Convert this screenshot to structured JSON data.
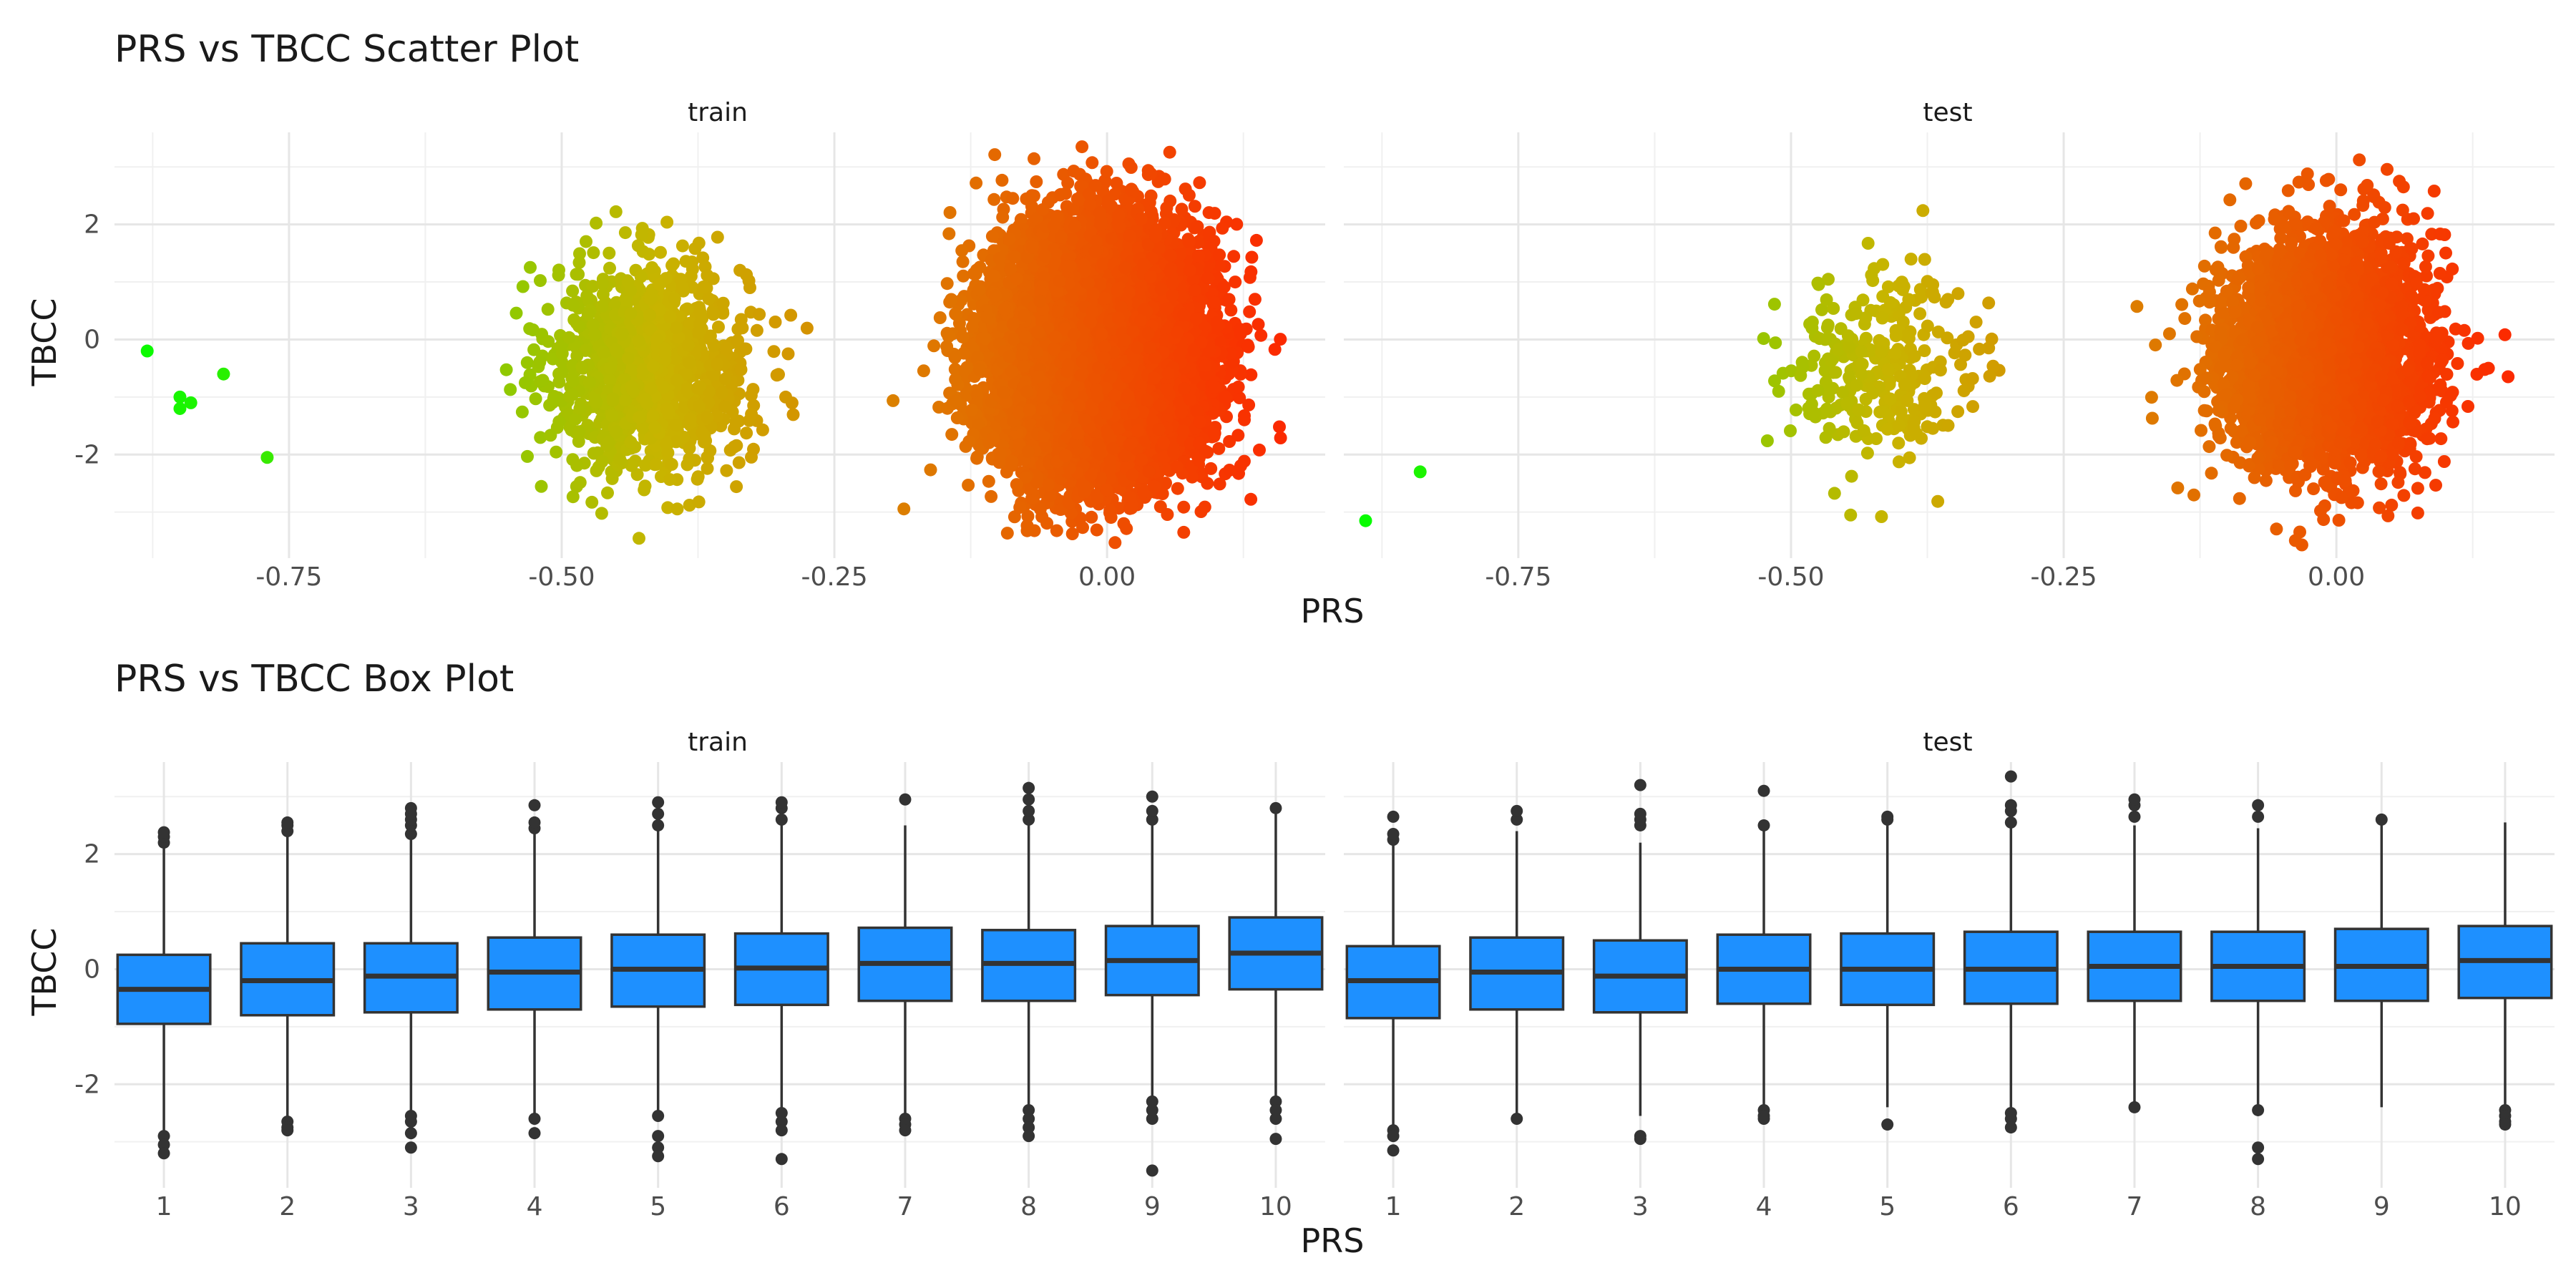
{
  "chart_data": [
    {
      "type": "scatter",
      "title": "PRS vs TBCC Scatter Plot",
      "xlabel": "PRS",
      "ylabel": "TBCC",
      "panels": [
        "train",
        "test"
      ],
      "xlim": [
        -0.91,
        0.2
      ],
      "ylim": [
        -3.8,
        3.6
      ],
      "x_ticks": [
        -0.75,
        -0.5,
        -0.25,
        0.0
      ],
      "x_tick_labels": [
        "-0.75",
        "-0.50",
        "-0.25",
        "0.00"
      ],
      "y_ticks": [
        -2,
        0,
        2
      ],
      "y_tick_labels": [
        "-2",
        "0",
        "2"
      ],
      "grid": true,
      "color_scale": {
        "low": "#00ff00",
        "mid": "#c8b400",
        "high": "#ff2000",
        "encodes": "PRS"
      },
      "clusters": [
        {
          "panel": "train",
          "x_center": -0.83,
          "x_sd": 0.04,
          "y_center": -0.9,
          "y_sd": 0.6,
          "n": 7
        },
        {
          "panel": "train",
          "x_center": -0.42,
          "x_sd": 0.045,
          "y_center": -0.5,
          "y_sd": 0.9,
          "n": 1200
        },
        {
          "panel": "train",
          "x_center": -0.01,
          "x_sd": 0.045,
          "y_center": -0.2,
          "y_sd": 0.98,
          "n": 14000
        },
        {
          "panel": "test",
          "x_center": -0.86,
          "x_sd": 0.02,
          "y_center": -2.7,
          "y_sd": 0.4,
          "n": 2
        },
        {
          "panel": "test",
          "x_center": -0.42,
          "x_sd": 0.045,
          "y_center": -0.5,
          "y_sd": 0.85,
          "n": 280
        },
        {
          "panel": "test",
          "x_center": -0.01,
          "x_sd": 0.045,
          "y_center": -0.2,
          "y_sd": 0.98,
          "n": 3600
        }
      ],
      "points": [
        {
          "panel": "train",
          "x": -0.88,
          "y": -0.2
        },
        {
          "panel": "train",
          "x": -0.85,
          "y": -1.0
        },
        {
          "panel": "train",
          "x": -0.85,
          "y": -1.2
        },
        {
          "panel": "train",
          "x": -0.84,
          "y": -1.1
        },
        {
          "panel": "train",
          "x": -0.81,
          "y": -0.6
        },
        {
          "panel": "train",
          "x": -0.77,
          "y": -2.05
        },
        {
          "panel": "test",
          "x": -0.89,
          "y": -3.15
        },
        {
          "panel": "test",
          "x": -0.84,
          "y": -2.3
        }
      ]
    },
    {
      "type": "box",
      "title": "PRS vs TBCC Box Plot",
      "xlabel": "PRS",
      "ylabel": "TBCC",
      "panels": [
        "train",
        "test"
      ],
      "categories": [
        "1",
        "2",
        "3",
        "4",
        "5",
        "6",
        "7",
        "8",
        "9",
        "10"
      ],
      "ylim": [
        -3.8,
        3.6
      ],
      "y_ticks": [
        -2,
        0,
        2
      ],
      "y_tick_labels": [
        "-2",
        "0",
        "2"
      ],
      "grid": true,
      "box_fill": "#1e90ff",
      "line_color": "#333333",
      "boxes": {
        "train": [
          {
            "q1": -0.95,
            "median": -0.35,
            "q3": 0.25,
            "whisker_low": -2.8,
            "whisker_high": 2.1,
            "outliers": [
              -2.9,
              -3.05,
              -3.2,
              2.2,
              2.3,
              2.38
            ]
          },
          {
            "q1": -0.8,
            "median": -0.2,
            "q3": 0.45,
            "whisker_low": -2.6,
            "whisker_high": 2.35,
            "outliers": [
              -2.65,
              -2.75,
              -2.8,
              2.4,
              2.5,
              2.55
            ]
          },
          {
            "q1": -0.75,
            "median": -0.12,
            "q3": 0.45,
            "whisker_low": -2.5,
            "whisker_high": 2.3,
            "outliers": [
              -2.55,
              -2.65,
              -2.85,
              -3.1,
              2.35,
              2.5,
              2.6,
              2.7,
              2.8
            ]
          },
          {
            "q1": -0.7,
            "median": -0.05,
            "q3": 0.55,
            "whisker_low": -2.5,
            "whisker_high": 2.4,
            "outliers": [
              -2.6,
              -2.85,
              2.45,
              2.55,
              2.85
            ]
          },
          {
            "q1": -0.65,
            "median": 0.0,
            "q3": 0.6,
            "whisker_low": -2.45,
            "whisker_high": 2.45,
            "outliers": [
              -2.55,
              -2.9,
              -3.1,
              -3.25,
              2.5,
              2.7,
              2.9
            ]
          },
          {
            "q1": -0.62,
            "median": 0.02,
            "q3": 0.62,
            "whisker_low": -2.4,
            "whisker_high": 2.5,
            "outliers": [
              -2.5,
              -2.65,
              -2.8,
              -3.3,
              2.6,
              2.8,
              2.9
            ]
          },
          {
            "q1": -0.55,
            "median": 0.1,
            "q3": 0.72,
            "whisker_low": -2.5,
            "whisker_high": 2.5,
            "outliers": [
              -2.6,
              -2.7,
              -2.8,
              2.95
            ]
          },
          {
            "q1": -0.55,
            "median": 0.1,
            "q3": 0.68,
            "whisker_low": -2.35,
            "whisker_high": 2.5,
            "outliers": [
              -2.45,
              -2.6,
              -2.75,
              -2.9,
              2.6,
              2.75,
              2.95,
              3.15
            ]
          },
          {
            "q1": -0.45,
            "median": 0.15,
            "q3": 0.75,
            "whisker_low": -2.2,
            "whisker_high": 2.55,
            "outliers": [
              -2.3,
              -2.45,
              -2.6,
              -3.5,
              2.6,
              2.75,
              3.0
            ]
          },
          {
            "q1": -0.35,
            "median": 0.28,
            "q3": 0.9,
            "whisker_low": -2.2,
            "whisker_high": 2.7,
            "outliers": [
              -2.3,
              -2.45,
              -2.6,
              -2.95,
              2.8
            ]
          }
        ],
        "test": [
          {
            "q1": -0.85,
            "median": -0.2,
            "q3": 0.4,
            "whisker_low": -2.7,
            "whisker_high": 2.2,
            "outliers": [
              -2.8,
              -2.9,
              -3.15,
              2.25,
              2.35,
              2.65
            ]
          },
          {
            "q1": -0.7,
            "median": -0.05,
            "q3": 0.55,
            "whisker_low": -2.5,
            "whisker_high": 2.4,
            "outliers": [
              -2.6,
              2.6,
              2.75
            ]
          },
          {
            "q1": -0.75,
            "median": -0.12,
            "q3": 0.5,
            "whisker_low": -2.55,
            "whisker_high": 2.2,
            "outliers": [
              -2.9,
              -2.95,
              2.5,
              2.6,
              2.7,
              3.2
            ]
          },
          {
            "q1": -0.6,
            "median": 0.0,
            "q3": 0.6,
            "whisker_low": -2.35,
            "whisker_high": 2.4,
            "outliers": [
              -2.45,
              -2.55,
              -2.6,
              2.5,
              3.1
            ]
          },
          {
            "q1": -0.62,
            "median": 0.0,
            "q3": 0.62,
            "whisker_low": -2.4,
            "whisker_high": 2.55,
            "outliers": [
              -2.7,
              2.6,
              2.65
            ]
          },
          {
            "q1": -0.6,
            "median": 0.0,
            "q3": 0.65,
            "whisker_low": -2.4,
            "whisker_high": 2.45,
            "outliers": [
              -2.5,
              -2.6,
              -2.75,
              2.55,
              2.75,
              2.85,
              3.35
            ]
          },
          {
            "q1": -0.55,
            "median": 0.05,
            "q3": 0.65,
            "whisker_low": -2.35,
            "whisker_high": 2.5,
            "outliers": [
              -2.4,
              2.65,
              2.85,
              2.95
            ]
          },
          {
            "q1": -0.55,
            "median": 0.05,
            "q3": 0.65,
            "whisker_low": -2.35,
            "whisker_high": 2.45,
            "outliers": [
              -2.45,
              -3.1,
              -3.3,
              2.65,
              2.85
            ]
          },
          {
            "q1": -0.55,
            "median": 0.05,
            "q3": 0.7,
            "whisker_low": -2.4,
            "whisker_high": 2.6,
            "outliers": [
              2.6
            ]
          },
          {
            "q1": -0.5,
            "median": 0.15,
            "q3": 0.75,
            "whisker_low": -2.35,
            "whisker_high": 2.55,
            "outliers": [
              -2.45,
              -2.55,
              -2.65,
              -2.7
            ]
          }
        ]
      }
    }
  ]
}
